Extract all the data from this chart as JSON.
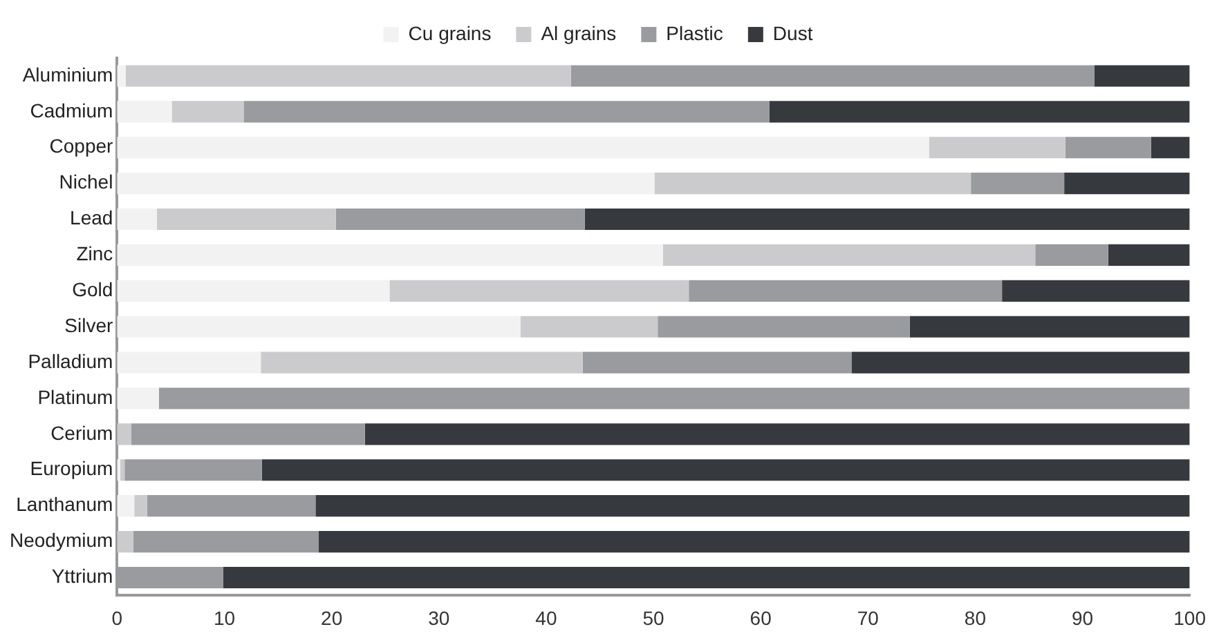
{
  "chart_data": {
    "type": "bar",
    "orientation": "horizontal",
    "stacked": true,
    "categories": [
      "Aluminium",
      "Cadmium",
      "Copper",
      "Nichel",
      "Lead",
      "Zinc",
      "Gold",
      "Silver",
      "Palladium",
      "Platinum",
      "Cerium",
      "Europium",
      "Lanthanum",
      "Neodymium",
      "Yttrium"
    ],
    "series": [
      {
        "name": "Cu grains",
        "color": "#f2f2f2",
        "values": [
          0.8,
          5.1,
          75.7,
          50.1,
          3.7,
          50.9,
          25.4,
          37.6,
          13.4,
          3.9,
          0,
          0.3,
          1.6,
          0,
          0
        ]
      },
      {
        "name": "Al grains",
        "color": "#cbcbcd",
        "values": [
          41.5,
          6.7,
          12.7,
          29.5,
          16.7,
          34.7,
          27.9,
          12.8,
          30,
          0,
          1.3,
          0.4,
          1.2,
          1.5,
          0
        ]
      },
      {
        "name": "Plastic",
        "color": "#9a9b9e",
        "values": [
          48.8,
          49,
          8,
          8.7,
          23.2,
          6.8,
          29.2,
          23.5,
          25.1,
          96.1,
          21.8,
          12.8,
          15.7,
          17.3,
          9.9
        ]
      },
      {
        "name": "Dust",
        "color": "#36393e",
        "values": [
          8.9,
          39.2,
          3.6,
          11.7,
          56.4,
          7.6,
          17.5,
          26.1,
          31.5,
          0,
          76.9,
          86.5,
          81.5,
          81.2,
          90.1
        ]
      }
    ],
    "xlim": [
      0,
      100
    ],
    "xticks": [
      0,
      10,
      20,
      30,
      40,
      50,
      60,
      70,
      80,
      90,
      100
    ],
    "grid": false,
    "legend": "top"
  }
}
